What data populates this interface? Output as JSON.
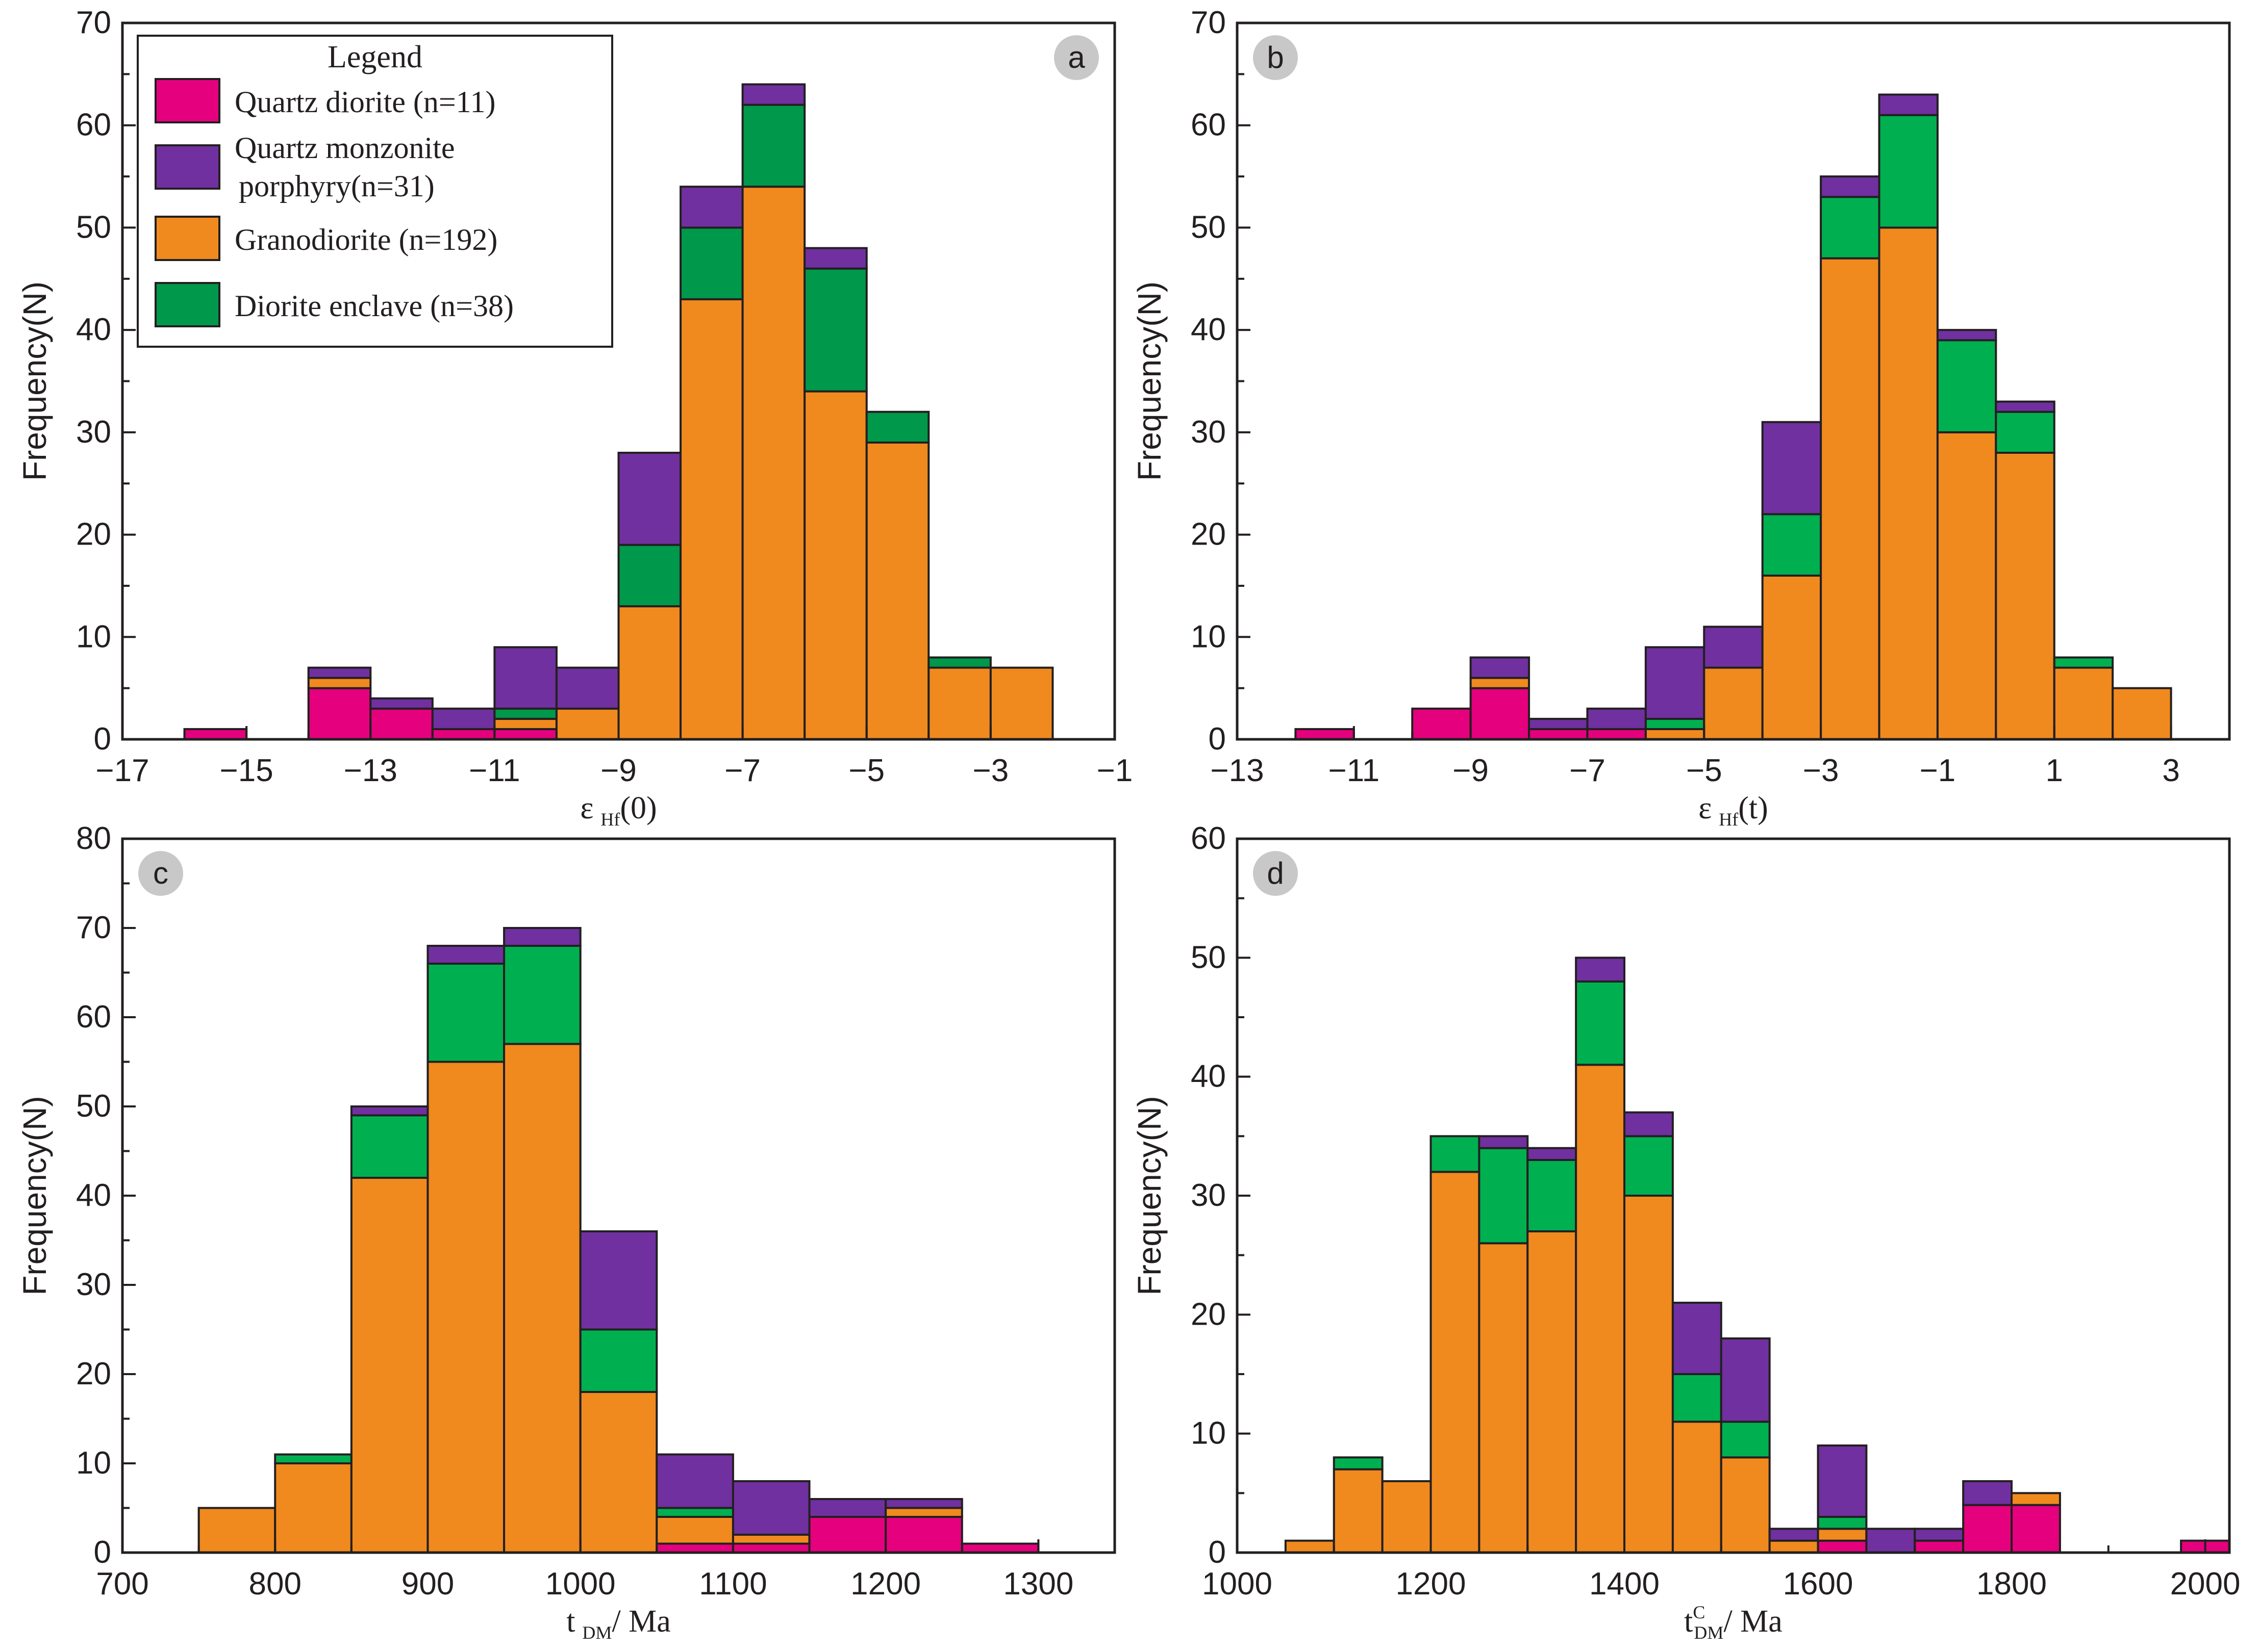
{
  "colors": {
    "quartz_diorite": "#e5007e",
    "quartz_monzonite": "#7030a0",
    "granodiorite": "#f08a1e",
    "diorite_enclave_dark": "#00984a",
    "diorite_enclave_light": "#00b050"
  },
  "legend": {
    "title": "Legend",
    "items": [
      {
        "label": "Quartz diorite (n=11)",
        "color_key": "quartz_diorite"
      },
      {
        "label": "Quartz monzonite porphyry(n=31)",
        "line1": "Quartz monzonite",
        "line2": "porphyry(n=31)",
        "color_key": "quartz_monzonite"
      },
      {
        "label": "Granodiorite (n=192)",
        "color_key": "granodiorite"
      },
      {
        "label": "Diorite enclave (n=38)",
        "color_key": "diorite_enclave_dark"
      }
    ]
  },
  "chart_data": [
    {
      "id": "a",
      "panel_label": "a",
      "type": "bar",
      "stacked": true,
      "xlabel": "εHf(0)",
      "xlabel_main": "ε",
      "xlabel_sub": "Hf",
      "xlabel_tail": "(0)",
      "ylabel": "Frequency(N)",
      "xlim": [
        -17,
        -1
      ],
      "ylim": [
        0,
        70
      ],
      "xticks": [
        -17,
        -15,
        -13,
        -11,
        -9,
        -7,
        -5,
        -3,
        -1
      ],
      "xtick_labels": [
        "−17",
        "−15",
        "−13",
        "−11",
        "−9",
        "−7",
        "−5",
        "−3",
        "−1"
      ],
      "yticks": [
        0,
        10,
        20,
        30,
        40,
        50,
        60,
        70
      ],
      "ytick_labels": [
        "0",
        "10",
        "20",
        "30",
        "40",
        "50",
        "60",
        "70"
      ],
      "bin_width": 1,
      "enclave_color_key": "diorite_enclave_dark",
      "bins": [
        {
          "x0": -16,
          "qd": 1,
          "gd": 0,
          "de": 0,
          "qm": 0
        },
        {
          "x0": -14,
          "qd": 5,
          "gd": 1,
          "de": 0,
          "qm": 1
        },
        {
          "x0": -13,
          "qd": 3,
          "gd": 0,
          "de": 0,
          "qm": 1
        },
        {
          "x0": -12,
          "qd": 1,
          "gd": 0,
          "de": 0,
          "qm": 2
        },
        {
          "x0": -11,
          "qd": 1,
          "gd": 1,
          "de": 1,
          "qm": 6
        },
        {
          "x0": -10,
          "qd": 0,
          "gd": 3,
          "de": 0,
          "qm": 4
        },
        {
          "x0": -9,
          "qd": 0,
          "gd": 13,
          "de": 6,
          "qm": 9
        },
        {
          "x0": -8,
          "qd": 0,
          "gd": 43,
          "de": 7,
          "qm": 4
        },
        {
          "x0": -7,
          "qd": 0,
          "gd": 54,
          "de": 8,
          "qm": 2
        },
        {
          "x0": -6,
          "qd": 0,
          "gd": 34,
          "de": 12,
          "qm": 2
        },
        {
          "x0": -5,
          "qd": 0,
          "gd": 29,
          "de": 3,
          "qm": 0
        },
        {
          "x0": -4,
          "qd": 0,
          "gd": 7,
          "de": 1,
          "qm": 0
        },
        {
          "x0": -3,
          "qd": 0,
          "gd": 7,
          "de": 0,
          "qm": 0
        }
      ]
    },
    {
      "id": "b",
      "panel_label": "b",
      "type": "bar",
      "stacked": true,
      "xlabel": "εHf(t)",
      "xlabel_main": "ε",
      "xlabel_sub": "Hf",
      "xlabel_tail": "(t)",
      "ylabel": "Frequency(N)",
      "xlim": [
        -13,
        4
      ],
      "ylim": [
        0,
        70
      ],
      "xticks": [
        -13,
        -11,
        -9,
        -7,
        -5,
        -3,
        -1,
        1,
        3
      ],
      "xtick_labels": [
        "−13",
        "−11",
        "−9",
        "−7",
        "−5",
        "−3",
        "−1",
        "1",
        "3"
      ],
      "yticks": [
        0,
        10,
        20,
        30,
        40,
        50,
        60,
        70
      ],
      "ytick_labels": [
        "0",
        "10",
        "20",
        "30",
        "40",
        "50",
        "60",
        "70"
      ],
      "bin_width": 1,
      "enclave_color_key": "diorite_enclave_light",
      "bins": [
        {
          "x0": -12,
          "qd": 1,
          "gd": 0,
          "de": 0,
          "qm": 0
        },
        {
          "x0": -10,
          "qd": 3,
          "gd": 0,
          "de": 0,
          "qm": 0
        },
        {
          "x0": -9,
          "qd": 5,
          "gd": 1,
          "de": 0,
          "qm": 2
        },
        {
          "x0": -8,
          "qd": 1,
          "gd": 0,
          "de": 0,
          "qm": 1
        },
        {
          "x0": -7,
          "qd": 1,
          "gd": 0,
          "de": 0,
          "qm": 2
        },
        {
          "x0": -6,
          "qd": 0,
          "gd": 1,
          "de": 1,
          "qm": 7
        },
        {
          "x0": -5,
          "qd": 0,
          "gd": 7,
          "de": 0,
          "qm": 4
        },
        {
          "x0": -4,
          "qd": 0,
          "gd": 16,
          "de": 6,
          "qm": 9
        },
        {
          "x0": -3,
          "qd": 0,
          "gd": 47,
          "de": 6,
          "qm": 2
        },
        {
          "x0": -2,
          "qd": 0,
          "gd": 50,
          "de": 11,
          "qm": 2
        },
        {
          "x0": -1,
          "qd": 0,
          "gd": 30,
          "de": 9,
          "qm": 1
        },
        {
          "x0": 0,
          "qd": 0,
          "gd": 28,
          "de": 4,
          "qm": 1
        },
        {
          "x0": 1,
          "qd": 0,
          "gd": 7,
          "de": 1,
          "qm": 0
        },
        {
          "x0": 2,
          "qd": 0,
          "gd": 5,
          "de": 0,
          "qm": 0
        }
      ]
    },
    {
      "id": "c",
      "panel_label": "c",
      "type": "bar",
      "stacked": true,
      "xlabel": "tDM/ Ma",
      "xlabel_main": "t",
      "xlabel_sub": "DM",
      "xlabel_tail": "/ Ma",
      "ylabel": "Frequency(N)",
      "xlim": [
        700,
        1350
      ],
      "ylim": [
        0,
        80
      ],
      "xticks": [
        700,
        800,
        900,
        1000,
        1100,
        1200,
        1300
      ],
      "xtick_labels": [
        "700",
        "800",
        "900",
        "1000",
        "1100",
        "1200",
        "1300"
      ],
      "yticks": [
        0,
        10,
        20,
        30,
        40,
        50,
        60,
        70,
        80
      ],
      "ytick_labels": [
        "0",
        "10",
        "20",
        "30",
        "40",
        "50",
        "60",
        "70",
        "80"
      ],
      "bin_width": 50,
      "enclave_color_key": "diorite_enclave_light",
      "bins": [
        {
          "x0": 750,
          "qd": 0,
          "gd": 5,
          "de": 0,
          "qm": 0
        },
        {
          "x0": 800,
          "qd": 0,
          "gd": 10,
          "de": 1,
          "qm": 0
        },
        {
          "x0": 850,
          "qd": 0,
          "gd": 42,
          "de": 7,
          "qm": 1
        },
        {
          "x0": 900,
          "qd": 0,
          "gd": 55,
          "de": 11,
          "qm": 2
        },
        {
          "x0": 950,
          "qd": 0,
          "gd": 57,
          "de": 11,
          "qm": 2
        },
        {
          "x0": 1000,
          "qd": 0,
          "gd": 18,
          "de": 7,
          "qm": 11
        },
        {
          "x0": 1050,
          "qd": 1,
          "gd": 3,
          "de": 1,
          "qm": 6
        },
        {
          "x0": 1100,
          "qd": 1,
          "gd": 1,
          "de": 0,
          "qm": 6
        },
        {
          "x0": 1150,
          "qd": 4,
          "gd": 0,
          "de": 0,
          "qm": 2
        },
        {
          "x0": 1200,
          "qd": 4,
          "gd": 1,
          "de": 0,
          "qm": 1
        },
        {
          "x0": 1250,
          "qd": 1,
          "gd": 0,
          "de": 0,
          "qm": 0
        }
      ]
    },
    {
      "id": "d",
      "panel_label": "d",
      "type": "bar",
      "stacked": true,
      "xlabel": "tCDM/ Ma",
      "xlabel_main": "t",
      "xlabel_sup": "C",
      "xlabel_sub": "DM",
      "xlabel_tail": "/ Ma",
      "ylabel": "Frequency(N)",
      "xlim": [
        1000,
        2025
      ],
      "ylim": [
        0,
        60
      ],
      "xticks": [
        1000,
        1200,
        1400,
        1600,
        1800,
        2000
      ],
      "xtick_labels": [
        "1000",
        "1200",
        "1400",
        "1600",
        "1800",
        "2000"
      ],
      "yticks": [
        0,
        10,
        20,
        30,
        40,
        50,
        60
      ],
      "ytick_labels": [
        "0",
        "10",
        "20",
        "30",
        "40",
        "50",
        "60"
      ],
      "bin_width": 50,
      "enclave_color_key": "diorite_enclave_light",
      "bins": [
        {
          "x0": 1050,
          "qd": 0,
          "gd": 1,
          "de": 0,
          "qm": 0
        },
        {
          "x0": 1100,
          "qd": 0,
          "gd": 7,
          "de": 1,
          "qm": 0
        },
        {
          "x0": 1150,
          "qd": 0,
          "gd": 6,
          "de": 0,
          "qm": 0
        },
        {
          "x0": 1200,
          "qd": 0,
          "gd": 32,
          "de": 3,
          "qm": 0
        },
        {
          "x0": 1250,
          "qd": 0,
          "gd": 26,
          "de": 8,
          "qm": 1
        },
        {
          "x0": 1300,
          "qd": 0,
          "gd": 27,
          "de": 6,
          "qm": 1
        },
        {
          "x0": 1350,
          "qd": 0,
          "gd": 41,
          "de": 7,
          "qm": 2
        },
        {
          "x0": 1400,
          "qd": 0,
          "gd": 30,
          "de": 5,
          "qm": 2
        },
        {
          "x0": 1450,
          "qd": 0,
          "gd": 11,
          "de": 4,
          "qm": 6
        },
        {
          "x0": 1500,
          "qd": 0,
          "gd": 8,
          "de": 3,
          "qm": 7
        },
        {
          "x0": 1550,
          "qd": 0,
          "gd": 1,
          "de": 0,
          "qm": 1
        },
        {
          "x0": 1600,
          "qd": 1,
          "gd": 1,
          "de": 1,
          "qm": 6
        },
        {
          "x0": 1650,
          "qd": 0,
          "gd": 0,
          "de": 0,
          "qm": 2
        },
        {
          "x0": 1700,
          "qd": 1,
          "gd": 0,
          "de": 0,
          "qm": 1
        },
        {
          "x0": 1750,
          "qd": 4,
          "gd": 0,
          "de": 0,
          "qm": 2
        },
        {
          "x0": 1800,
          "qd": 4,
          "gd": 1,
          "de": 0,
          "qm": 0
        },
        {
          "x0": 1975,
          "qd": 1,
          "gd": 0,
          "de": 0,
          "qm": 0
        }
      ]
    }
  ]
}
